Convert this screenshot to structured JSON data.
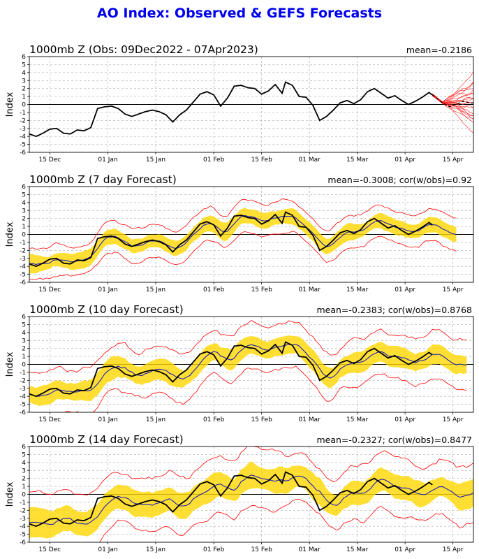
{
  "page_title": "AO Index: Observed & GEFS Forecasts",
  "chart_data": [
    {
      "type": "line",
      "title": "1000mb Z (Obs: 09Dec2022 - 07Apr2023)",
      "stat": "mean=-0.2186",
      "ylabel": "Index",
      "ylim": [
        -6,
        6
      ],
      "yticks": [
        -6,
        -5,
        -4,
        -3,
        -2,
        -1,
        0,
        1,
        2,
        3,
        4,
        5,
        6
      ],
      "xlim": [
        0,
        130
      ],
      "xtick_positions": [
        6,
        23,
        37,
        54,
        68,
        82,
        96,
        110,
        124
      ],
      "xtick_labels": [
        "15 Dec",
        "01 Jan",
        "15 Jan",
        "01 Feb",
        "15 Feb",
        "01 Mar",
        "15 Mar",
        "01 Apr",
        "15 Apr"
      ],
      "grid": true,
      "observed_key": [
        [
          0,
          -3.7
        ],
        [
          2,
          -4.0
        ],
        [
          4,
          -3.6
        ],
        [
          6,
          -3.1
        ],
        [
          8,
          -3.0
        ],
        [
          10,
          -3.6
        ],
        [
          12,
          -3.7
        ],
        [
          14,
          -3.2
        ],
        [
          16,
          -3.3
        ],
        [
          18,
          -2.9
        ],
        [
          20,
          -0.5
        ],
        [
          22,
          -0.3
        ],
        [
          24,
          -0.2
        ],
        [
          26,
          -0.5
        ],
        [
          28,
          -1.2
        ],
        [
          30,
          -1.5
        ],
        [
          32,
          -1.2
        ],
        [
          34,
          -0.9
        ],
        [
          36,
          -0.7
        ],
        [
          38,
          -0.9
        ],
        [
          40,
          -1.3
        ],
        [
          42,
          -2.2
        ],
        [
          44,
          -1.3
        ],
        [
          46,
          -0.7
        ],
        [
          48,
          0.3
        ],
        [
          50,
          1.3
        ],
        [
          52,
          1.6
        ],
        [
          54,
          1.2
        ],
        [
          56,
          -0.2
        ],
        [
          58,
          0.8
        ],
        [
          60,
          2.3
        ],
        [
          62,
          2.4
        ],
        [
          64,
          2.1
        ],
        [
          66,
          2.0
        ],
        [
          68,
          1.3
        ],
        [
          70,
          1.7
        ],
        [
          72,
          2.5
        ],
        [
          74,
          1.4
        ],
        [
          75,
          2.8
        ],
        [
          77,
          2.4
        ],
        [
          79,
          1.0
        ],
        [
          81,
          0.9
        ],
        [
          83,
          -0.1
        ],
        [
          85,
          -2.0
        ],
        [
          87,
          -1.5
        ],
        [
          89,
          -0.7
        ],
        [
          91,
          0.2
        ],
        [
          93,
          0.5
        ],
        [
          95,
          0.1
        ],
        [
          97,
          0.6
        ],
        [
          99,
          1.6
        ],
        [
          101,
          2.0
        ],
        [
          103,
          1.4
        ],
        [
          105,
          0.8
        ],
        [
          107,
          1.1
        ],
        [
          109,
          0.5
        ],
        [
          111,
          0.0
        ],
        [
          113,
          0.4
        ],
        [
          115,
          0.9
        ],
        [
          117,
          1.5
        ],
        [
          119,
          0.9
        ],
        [
          121,
          0.2
        ],
        [
          123,
          -0.3
        ],
        [
          125,
          0.0
        ],
        [
          127,
          0.7
        ],
        [
          129,
          0.3
        ]
      ],
      "ensemble_members": 21,
      "ensemble_start": 118
    },
    {
      "type": "area",
      "title": "1000mb Z (7 day Forecast)",
      "stat": "mean=-0.3008; cor(w/obs)=0.92",
      "ylabel": "Index",
      "ylim": [
        -6,
        6
      ],
      "yticks": [
        -6,
        -5,
        -4,
        -3,
        -2,
        -1,
        0,
        1,
        2,
        3,
        4,
        5,
        6
      ],
      "xlim": [
        0,
        130
      ],
      "xtick_positions": [
        6,
        23,
        37,
        54,
        68,
        82,
        96,
        110,
        124
      ],
      "xtick_labels": [
        "15 Dec",
        "01 Jan",
        "15 Jan",
        "01 Feb",
        "15 Feb",
        "01 Mar",
        "15 Mar",
        "01 Apr",
        "15 Apr"
      ],
      "grid": true,
      "obs_end": 118,
      "fc_end": 125,
      "fc_lag": 1,
      "band_width": 1.0,
      "spread_width": 2.0,
      "seed": 7
    },
    {
      "type": "area",
      "title": "1000mb Z (10 day Forecast)",
      "stat": "mean=-0.2383; cor(w/obs)=0.8768",
      "ylabel": "Index",
      "ylim": [
        -6,
        6
      ],
      "yticks": [
        -6,
        -5,
        -4,
        -3,
        -2,
        -1,
        0,
        1,
        2,
        3,
        4,
        5,
        6
      ],
      "xlim": [
        0,
        130
      ],
      "xtick_positions": [
        6,
        23,
        37,
        54,
        68,
        82,
        96,
        110,
        124
      ],
      "xtick_labels": [
        "15 Dec",
        "01 Jan",
        "15 Jan",
        "01 Feb",
        "15 Feb",
        "01 Mar",
        "15 Mar",
        "01 Apr",
        "15 Apr"
      ],
      "grid": true,
      "obs_end": 118,
      "fc_end": 128,
      "fc_lag": 2,
      "band_width": 1.3,
      "spread_width": 2.8,
      "seed": 13
    },
    {
      "type": "area",
      "title": "1000mb Z (14 day Forecast)",
      "stat": "mean=-0.2327; cor(w/obs)=0.8477",
      "ylabel": "Index",
      "ylim": [
        -6,
        6
      ],
      "yticks": [
        -6,
        -5,
        -4,
        -3,
        -2,
        -1,
        0,
        1,
        2,
        3,
        4,
        5,
        6
      ],
      "xlim": [
        0,
        130
      ],
      "xtick_positions": [
        6,
        23,
        37,
        54,
        68,
        82,
        96,
        110,
        124
      ],
      "xtick_labels": [
        "15 Dec",
        "01 Jan",
        "15 Jan",
        "01 Feb",
        "15 Feb",
        "01 Mar",
        "15 Mar",
        "01 Apr",
        "15 Apr"
      ],
      "grid": true,
      "obs_end": 118,
      "fc_end": 130,
      "fc_lag": 3,
      "band_width": 1.6,
      "spread_width": 3.4,
      "seed": 29
    }
  ],
  "colors": {
    "title": "#0000ee",
    "observed": "#000000",
    "forecast_mean": "#1f1fb4",
    "band": "#ffd700",
    "spread": "#ff0000",
    "ensemble": "#ff2020",
    "grid": "#b0b0b0"
  }
}
